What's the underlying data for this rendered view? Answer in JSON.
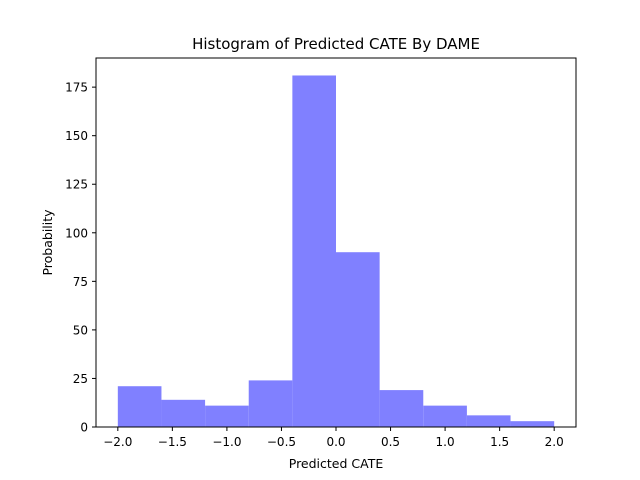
{
  "chart_data": {
    "type": "bar",
    "title": "Histogram of Predicted CATE By DAME",
    "xlabel": "Predicted CATE",
    "ylabel": "Probability",
    "bin_edges": [
      -2.0,
      -1.6,
      -1.2,
      -0.8,
      -0.4,
      0.0,
      0.4,
      0.8,
      1.2,
      1.6,
      2.0
    ],
    "values": [
      21,
      14,
      11,
      24,
      181,
      90,
      19,
      11,
      6,
      3
    ],
    "xlim": [
      -2.2,
      2.2
    ],
    "ylim": [
      0,
      190
    ],
    "x_ticks": [
      -2.0,
      -1.5,
      -1.0,
      -0.5,
      0.0,
      0.5,
      1.0,
      1.5,
      2.0
    ],
    "x_tick_labels": [
      "−2.0",
      "−1.5",
      "−1.0",
      "−0.5",
      "0.0",
      "0.5",
      "1.0",
      "1.5",
      "2.0"
    ],
    "y_ticks": [
      0,
      25,
      50,
      75,
      100,
      125,
      150,
      175
    ],
    "y_tick_labels": [
      "0",
      "25",
      "50",
      "75",
      "100",
      "125",
      "150",
      "175"
    ],
    "bar_color": "#8080ff",
    "grid": false,
    "legend": "none"
  }
}
